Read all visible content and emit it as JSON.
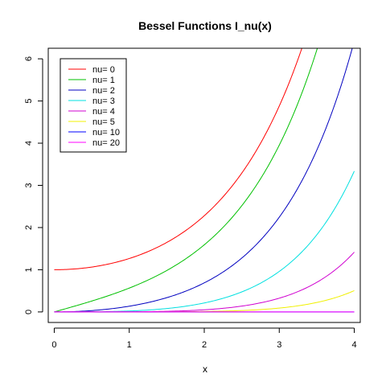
{
  "chart_data": {
    "type": "line",
    "title": "Bessel Functions  I_nu(x)",
    "xlabel": "x",
    "ylabel": "",
    "xlim": [
      -0.08,
      4.08
    ],
    "ylim": [
      -0.25,
      6.25
    ],
    "x_ticks": [
      0,
      1,
      2,
      3,
      4
    ],
    "y_ticks": [
      0,
      1,
      2,
      3,
      4,
      5,
      6
    ],
    "grid": false,
    "legend_position": "top-left",
    "series": [
      {
        "name": "nu= 0",
        "nu": 0,
        "color": "#ff0000"
      },
      {
        "name": "nu= 1",
        "nu": 1,
        "color": "#00c000"
      },
      {
        "name": "nu= 2",
        "nu": 2,
        "color": "#0000c0"
      },
      {
        "name": "nu= 3",
        "nu": 3,
        "color": "#00e0e0"
      },
      {
        "name": "nu= 4",
        "nu": 4,
        "color": "#d000d0"
      },
      {
        "name": "nu= 5",
        "nu": 5,
        "color": "#f0f000"
      },
      {
        "name": "nu= 10",
        "nu": 10,
        "color": "#0000ff"
      },
      {
        "name": "nu= 20",
        "nu": 20,
        "color": "#ff00ff"
      }
    ]
  }
}
